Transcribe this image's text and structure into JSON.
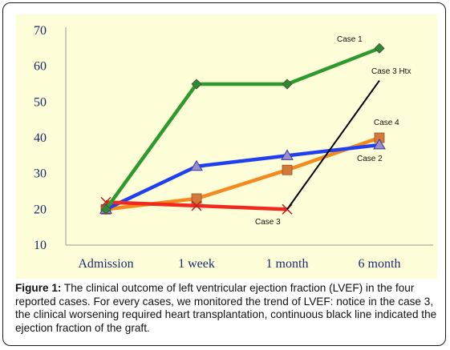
{
  "chart_data": {
    "type": "line",
    "title": "",
    "xlabel": "",
    "ylabel": "",
    "categories": [
      "Admission",
      "1 week",
      "1 month",
      "6 month"
    ],
    "ylim": [
      10,
      70
    ],
    "yticks": [
      10,
      20,
      30,
      40,
      50,
      60,
      70
    ],
    "grid": false,
    "legend": "none",
    "series": [
      {
        "name": "Case 1",
        "color": "#2e9a2e",
        "marker": "diamond",
        "values": [
          20,
          55,
          55,
          65
        ]
      },
      {
        "name": "Case 2",
        "color": "#1f3ff0",
        "marker": "triangle",
        "values": [
          20,
          32,
          35,
          38
        ]
      },
      {
        "name": "Case 3",
        "color": "#f0281e",
        "marker": "x",
        "values": [
          22,
          21,
          20,
          null
        ]
      },
      {
        "name": "Case 4",
        "color": "#f5891e",
        "marker": "square",
        "values": [
          20,
          23,
          31,
          40
        ]
      },
      {
        "name": "Case 3 Htx",
        "color": "#000000",
        "marker": "none",
        "from": {
          "category": "1 month",
          "value": 20
        },
        "to": {
          "category": "6 month",
          "value": 56
        }
      }
    ]
  },
  "caption": {
    "label": "Figure 1:",
    "text": " The clinical outcome of left ventricular ejection fraction (LVEF) in the four reported cases. For every cases, we monitored the trend of LVEF: notice in the case 3, the clinical worsening required heart transplantation, continuous black line indicated the ejection fraction of the graft."
  }
}
